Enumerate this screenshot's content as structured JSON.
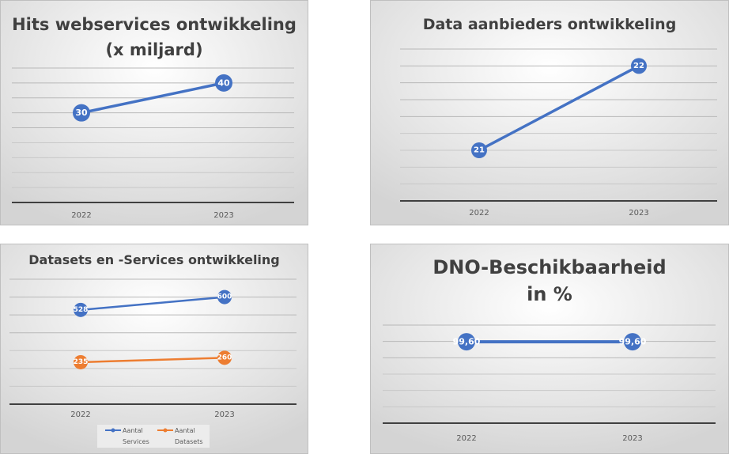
{
  "chart_data": [
    {
      "type": "line",
      "title": "Hits webservices ontwikkeling",
      "title_line2": "(x miljard)",
      "categories": [
        "2022",
        "2023"
      ],
      "series": [
        {
          "values": [
            30,
            40
          ],
          "color": "#4472C4"
        }
      ],
      "ylim": [
        0,
        45
      ],
      "grid_step": 5,
      "grid": true,
      "legend": "none"
    },
    {
      "type": "line",
      "title": "Data aanbieders ontwikkeling",
      "categories": [
        "2022",
        "2023"
      ],
      "series": [
        {
          "values": [
            21,
            22
          ],
          "color": "#4472C4"
        }
      ],
      "ylim": [
        20.4,
        22.2
      ],
      "grid_step": 0.2,
      "grid": true,
      "legend": "none"
    },
    {
      "type": "line",
      "title": "Datasets en -Services ontwikkeling",
      "categories": [
        "2022",
        "2023"
      ],
      "series": [
        {
          "name": "Aantal Services",
          "name_line1": "Aantal",
          "name_line2": "Services",
          "values": [
            528,
            600
          ],
          "color": "#4472C4"
        },
        {
          "name": "Aantal Datasets",
          "name_line1": "Aantal",
          "name_line2": "Datasets",
          "values": [
            235,
            260
          ],
          "color": "#ED7D31"
        }
      ],
      "ylim": [
        0,
        700
      ],
      "grid_step": 100,
      "grid": true,
      "legend": "bottom"
    },
    {
      "type": "line",
      "title": "DNO-Beschikbaarheid",
      "title_line2": "in %",
      "categories": [
        "2022",
        "2023"
      ],
      "series": [
        {
          "values": [
            "99,60",
            "99,60"
          ],
          "numeric": [
            99.6,
            99.6
          ],
          "color": "#4472C4"
        }
      ],
      "ylim": [
        0,
        120
      ],
      "grid_step": 20,
      "grid": true,
      "legend": "none"
    }
  ]
}
